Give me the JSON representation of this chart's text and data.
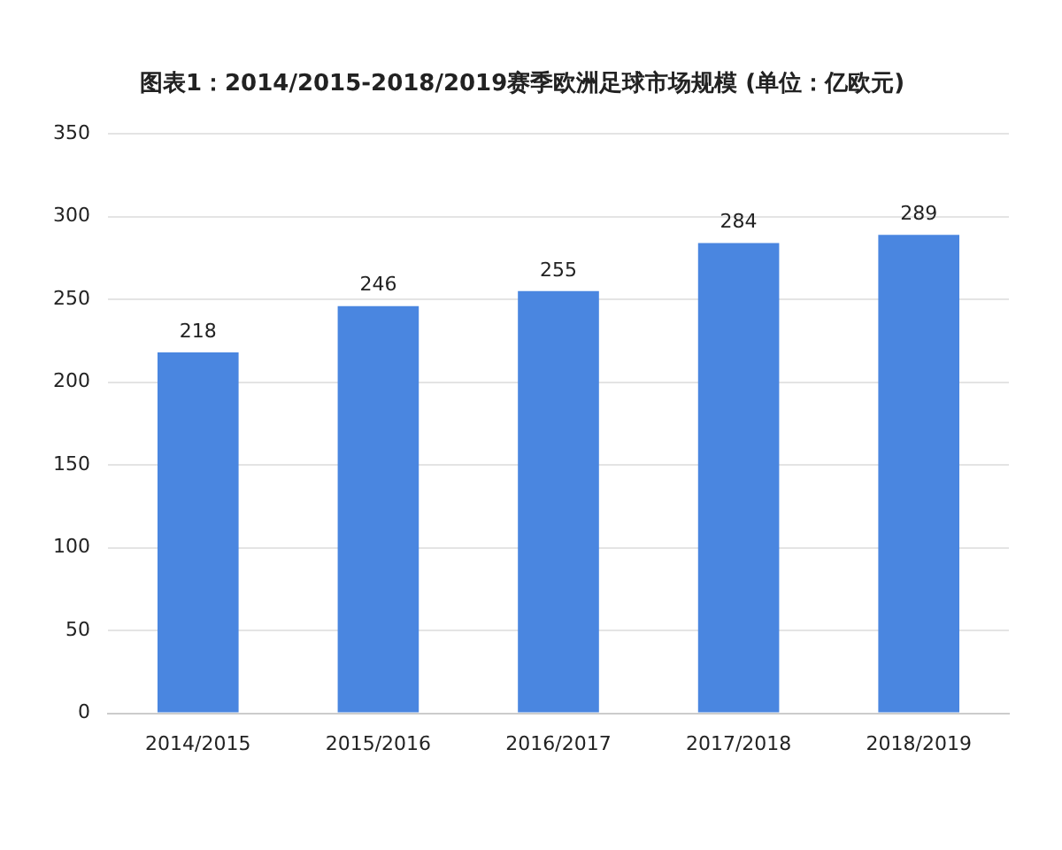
{
  "chart_data": {
    "type": "bar",
    "title": "图表1：2014/2015-2018/2019赛季欧洲足球市场规模 (单位：亿欧元)",
    "categories": [
      "2014/2015",
      "2015/2016",
      "2016/2017",
      "2017/2018",
      "2018/2019"
    ],
    "values": [
      218,
      246,
      255,
      284,
      289
    ],
    "color": "#4a86e0",
    "ylim": [
      0,
      350
    ],
    "yticks": [
      0,
      50,
      100,
      150,
      200,
      250,
      300,
      350
    ],
    "grid": "y",
    "data_labels": true
  }
}
